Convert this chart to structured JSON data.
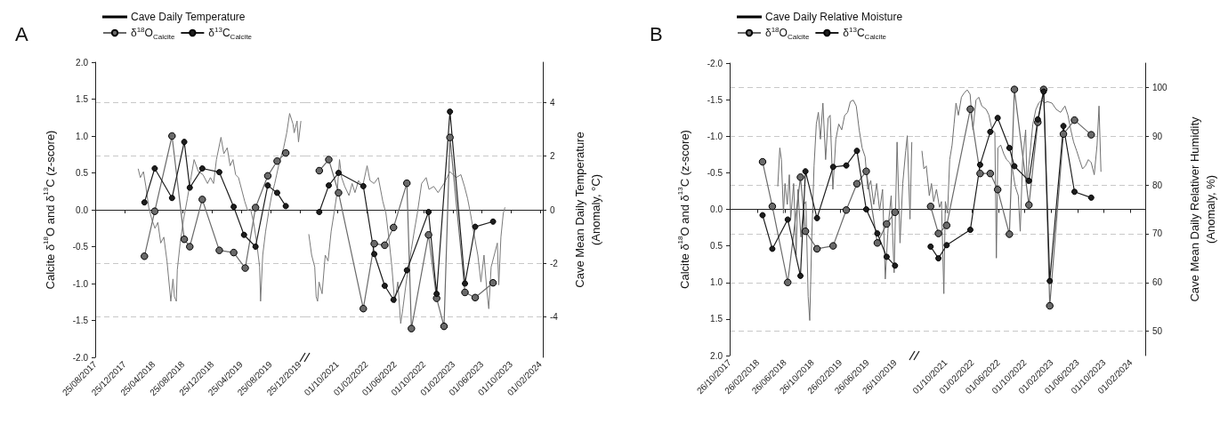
{
  "chart_data": [
    {
      "type": "line",
      "title": "A",
      "ylabel": "Calcite δ$^{18}$O and δ$^{13}$C (z-score)",
      "legend": "top left",
      "grid": "y2",
      "xlim": [
        "2017-08-25",
        "2020-01-17"
      ],
      "xticks": [
        {
          "value": "2017-08-25",
          "label": "25/08/2017"
        },
        {
          "value": "2017-12-25",
          "label": "25/12/2017"
        },
        {
          "value": "2018-04-25",
          "label": "25/04/2018"
        },
        {
          "value": "2018-08-25",
          "label": "25/08/2018"
        },
        {
          "value": "2018-12-25",
          "label": "25/12/2018"
        },
        {
          "value": "2019-04-25",
          "label": "25/04/2019"
        },
        {
          "value": "2019-08-25",
          "label": "25/08/2019"
        },
        {
          "value": "2019-12-25",
          "label": "25/12/2019"
        }
      ],
      "ylim": [
        -2,
        2
      ],
      "yticks": [
        {
          "value": -2,
          "label": "-2.0"
        },
        {
          "value": -1.5,
          "label": "-1.5"
        },
        {
          "value": -1,
          "label": "-1.0"
        },
        {
          "value": -0.5,
          "label": "-0.5"
        },
        {
          "value": 0,
          "label": "0.0"
        },
        {
          "value": 0.5,
          "label": "0.5"
        },
        {
          "value": 1,
          "label": "1.0"
        },
        {
          "value": 1.5,
          "label": "1.5"
        },
        {
          "value": 2,
          "label": "2.0"
        }
      ],
      "y2lim": [
        -5.5,
        5.5
      ],
      "series": [
        {
          "name": "Cave Daily Temperature",
          "axis": "y2",
          "marker": "none",
          "color": "#7a7a7a",
          "x": [
            "2018-02-20",
            "2018-03-01",
            "2018-03-14",
            "2018-03-24",
            "2018-04-05",
            "2018-04-18",
            "2018-05-01",
            "2018-05-13",
            "2018-05-25",
            "2018-06-07",
            "2018-06-20",
            "2018-07-06",
            "2018-07-15",
            "2018-07-21",
            "2018-07-29",
            "2018-08-02",
            "2018-08-14",
            "2018-08-28",
            "2018-09-13",
            "2018-09-28",
            "2018-10-11",
            "2018-10-29",
            "2018-11-17",
            "2018-12-06",
            "2018-12-18",
            "2018-12-31",
            "2019-01-12",
            "2019-01-31",
            "2019-02-12",
            "2019-02-26",
            "2019-03-10",
            "2019-03-22",
            "2019-04-02",
            "2019-04-14",
            "2019-04-27",
            "2019-05-10",
            "2019-05-22",
            "2019-06-03",
            "2019-06-16",
            "2019-06-29",
            "2019-07-11",
            "2019-07-15",
            "2019-07-24",
            "2019-08-05",
            "2019-08-17",
            "2019-08-30",
            "2019-09-12",
            "2019-10-01",
            "2019-10-19",
            "2019-11-01",
            "2019-11-13",
            "2019-11-27",
            "2019-12-02",
            "2019-12-14",
            "2019-12-20",
            "2019-12-30"
          ],
          "values": [
            1.53,
            1.2,
            1.42,
            0.87,
            0.09,
            -0.36,
            -0.69,
            -0.47,
            -1.24,
            -1.02,
            -1.91,
            -3.41,
            -2.58,
            -3.24,
            -3.41,
            -2.24,
            -1.24,
            -0.36,
            0.42,
            1.2,
            1.87,
            1.42,
            1.31,
            0.98,
            1.2,
            0.98,
            1.87,
            2.7,
            2.09,
            2.31,
            1.64,
            1.87,
            1.31,
            1.2,
            0.76,
            0.31,
            -0.02,
            0.03,
            -0.47,
            -1.24,
            -2.13,
            -3.41,
            -1.69,
            -0.8,
            -0.13,
            0.53,
            0.98,
            1.76,
            2.31,
            2.87,
            3.59,
            3.2,
            2.87,
            3.31,
            2.53,
            3.31
          ]
        },
        {
          "name": "δ$^{18}$O$_{Calcite}$",
          "marker": "circle",
          "color": "#6a6a6a",
          "x": [
            "2018-03-18",
            "2018-04-30",
            "2018-07-11",
            "2018-08-31",
            "2018-09-23",
            "2018-11-14",
            "2019-01-24",
            "2019-03-25",
            "2019-05-12",
            "2019-06-24",
            "2019-08-14",
            "2019-09-22",
            "2019-10-28"
          ],
          "values": [
            -0.63,
            -0.02,
            1.0,
            -0.4,
            -0.5,
            0.14,
            -0.55,
            -0.58,
            -0.79,
            0.03,
            0.46,
            0.66,
            0.77
          ]
        },
        {
          "name": "δ$^{13}$C$_{Calcite}$",
          "marker": "circle",
          "color": "#1e1e1e",
          "x": [
            "2018-03-18",
            "2018-04-30",
            "2018-07-11",
            "2018-08-31",
            "2018-09-23",
            "2018-11-14",
            "2019-01-24",
            "2019-03-25",
            "2019-05-07",
            "2019-06-24",
            "2019-08-14",
            "2019-09-22",
            "2019-10-28"
          ],
          "values": [
            0.1,
            0.56,
            0.16,
            0.92,
            0.3,
            0.56,
            0.51,
            0.04,
            -0.34,
            -0.5,
            0.33,
            0.23,
            0.05
          ]
        }
      ]
    },
    {
      "type": "line",
      "y2label": "Cave Mean Daily Temperature\n(Anomaly, °C)",
      "grid": "y2",
      "xlim": [
        "2021-05-20",
        "2024-02-12"
      ],
      "xticks": [
        {
          "value": "2021-10-01",
          "label": "01/10/2021"
        },
        {
          "value": "2022-02-01",
          "label": "01/02/2022"
        },
        {
          "value": "2022-06-01",
          "label": "01/06/2022"
        },
        {
          "value": "2022-10-01",
          "label": "01/10/2022"
        },
        {
          "value": "2023-02-01",
          "label": "01/02/2023"
        },
        {
          "value": "2023-06-01",
          "label": "01/06/2023"
        },
        {
          "value": "2023-10-01",
          "label": "01/10/2023"
        },
        {
          "value": "2024-02-01",
          "label": "01/02/2024"
        }
      ],
      "ylim": [
        -2,
        2
      ],
      "y2lim": [
        -5.5,
        5.5
      ],
      "y2ticks": [
        -4,
        -2,
        0,
        2,
        4
      ],
      "series": [
        {
          "axis": "y2",
          "marker": "none",
          "color": "#7a7a7a",
          "x": [
            "2021-06-04",
            "2021-06-16",
            "2021-06-29",
            "2021-07-05",
            "2021-07-11",
            "2021-07-17",
            "2021-07-30",
            "2021-08-12",
            "2021-08-24",
            "2021-09-06",
            "2021-09-18",
            "2021-10-01",
            "2021-10-11",
            "2021-10-20",
            "2021-11-02",
            "2021-11-20",
            "2021-12-03",
            "2021-12-15",
            "2021-12-30",
            "2022-01-16",
            "2022-02-04",
            "2022-02-16",
            "2022-03-05",
            "2022-03-23",
            "2022-04-11",
            "2022-04-24",
            "2022-05-06",
            "2022-05-19",
            "2022-05-31",
            "2022-06-13",
            "2022-06-25",
            "2022-07-04",
            "2022-07-20",
            "2022-08-09",
            "2022-08-21",
            "2022-09-03",
            "2022-09-21",
            "2022-10-10",
            "2022-10-22",
            "2022-11-11",
            "2022-11-29",
            "2022-12-24",
            "2023-01-18",
            "2023-02-13",
            "2023-03-05",
            "2023-03-20",
            "2023-04-02",
            "2023-04-14",
            "2023-04-27",
            "2023-05-15",
            "2023-05-28",
            "2023-06-10",
            "2023-06-22",
            "2023-06-30",
            "2023-07-10",
            "2023-07-23",
            "2023-08-05",
            "2023-08-11",
            "2023-08-20",
            "2023-08-30",
            "2023-09-06"
          ],
          "values": [
            -0.91,
            -1.69,
            -2.13,
            -3.24,
            -3.41,
            -2.69,
            -3.13,
            -1.69,
            -1.91,
            -0.8,
            -0.13,
            0.64,
            1.87,
            1.2,
            0.87,
            0.53,
            0.98,
            0.64,
            1.09,
            0.87,
            1.64,
            1.09,
            0.98,
            1.2,
            0.31,
            -0.13,
            -1.02,
            -2.13,
            -3.47,
            -2.69,
            -4.24,
            -3.69,
            -2.58,
            -1.47,
            -0.8,
            -0.13,
            0.98,
            1.2,
            0.76,
            0.87,
            0.64,
            0.98,
            1.42,
            1.2,
            1.31,
            0.87,
            0.42,
            -0.13,
            -0.8,
            -1.69,
            -2.69,
            -1.69,
            -3.02,
            -3.69,
            -2.13,
            -1.69,
            -1.24,
            -2.8,
            -1.02,
            -0.13,
            0.09
          ]
        },
        {
          "marker": "circle",
          "color": "#6a6a6a",
          "x": [
            "2021-07-18",
            "2021-08-27",
            "2021-10-07",
            "2022-01-19",
            "2022-03-06",
            "2022-04-19",
            "2022-05-26",
            "2022-07-21",
            "2022-08-09",
            "2022-10-20",
            "2022-11-23",
            "2022-12-24",
            "2023-01-18",
            "2023-03-22",
            "2023-05-04",
            "2023-07-18"
          ],
          "values": [
            0.53,
            0.68,
            0.23,
            -1.34,
            -0.46,
            -0.48,
            -0.24,
            0.36,
            -1.61,
            -0.34,
            -1.2,
            -1.58,
            0.98,
            -1.12,
            -1.19,
            -0.99
          ]
        },
        {
          "marker": "circle",
          "color": "#1e1e1e",
          "x": [
            "2021-07-18",
            "2021-08-27",
            "2021-10-07",
            "2022-01-19",
            "2022-03-06",
            "2022-04-19",
            "2022-05-26",
            "2022-07-21",
            "2022-10-20",
            "2022-11-23",
            "2023-01-18",
            "2023-03-22",
            "2023-05-04",
            "2023-07-18"
          ],
          "values": [
            -0.03,
            0.33,
            0.5,
            0.32,
            -0.6,
            -1.03,
            -1.22,
            -0.82,
            -0.03,
            -1.14,
            1.33,
            -1.0,
            -0.23,
            -0.16
          ]
        }
      ]
    },
    {
      "type": "line",
      "title": "B",
      "ylabel": "Calcite δ$^{18}$O and δ$^{13}$C (z-score)",
      "legend": "top left",
      "grid": "y2",
      "xlim": [
        "2017-10-26",
        "2020-01-20"
      ],
      "xticks": [
        {
          "value": "2017-10-26",
          "label": "26/10/2017"
        },
        {
          "value": "2018-02-26",
          "label": "26/02/2018"
        },
        {
          "value": "2018-06-26",
          "label": "26/06/2018"
        },
        {
          "value": "2018-10-26",
          "label": "26/10/2018"
        },
        {
          "value": "2019-02-26",
          "label": "26/02/2019"
        },
        {
          "value": "2019-06-26",
          "label": "26/06/2019"
        },
        {
          "value": "2019-10-26",
          "label": "26/10/2019"
        }
      ],
      "ylim": [
        2,
        -2
      ],
      "yticks": [
        {
          "value": -2,
          "label": "-2.0"
        },
        {
          "value": -1.5,
          "label": "-1.5"
        },
        {
          "value": -1,
          "label": "-1.0"
        },
        {
          "value": -0.5,
          "label": "-0.5"
        },
        {
          "value": 0,
          "label": "0.0"
        },
        {
          "value": 0.5,
          "label": "0.5"
        },
        {
          "value": 1,
          "label": "1.0"
        },
        {
          "value": 1.5,
          "label": "1.5"
        },
        {
          "value": 2,
          "label": "2.0"
        }
      ],
      "y2lim": [
        45,
        105
      ],
      "series": [
        {
          "name": "Cave Daily Relative Moisture",
          "axis": "y2",
          "marker": "none",
          "color": "#6f6f6f",
          "x": [
            "2018-05-26",
            "2018-06-04",
            "2018-06-11",
            "2018-06-20",
            "2018-06-27",
            "2018-07-07",
            "2018-07-16",
            "2018-07-22",
            "2018-08-04",
            "2018-08-15",
            "2018-08-23",
            "2018-09-05",
            "2018-09-18",
            "2018-09-27",
            "2018-10-07",
            "2018-10-14",
            "2018-10-23",
            "2018-11-02",
            "2018-11-12",
            "2018-11-21",
            "2018-11-30",
            "2018-12-11",
            "2018-12-23",
            "2019-01-03",
            "2019-01-12",
            "2019-01-24",
            "2019-02-06",
            "2019-02-19",
            "2019-03-04",
            "2019-03-17",
            "2019-03-30",
            "2019-04-11",
            "2019-04-24",
            "2019-05-07",
            "2019-05-20",
            "2019-06-02",
            "2019-06-15",
            "2019-06-27",
            "2019-07-10",
            "2019-07-23",
            "2019-08-05",
            "2019-08-18",
            "2019-08-31",
            "2019-09-12",
            "2019-09-25",
            "2019-10-08",
            "2019-10-21",
            "2019-11-03",
            "2019-11-16",
            "2019-11-28",
            "2019-12-11",
            "2019-12-18",
            "2019-12-30",
            "2020-01-07"
          ],
          "values": [
            79.7,
            87.6,
            85.2,
            74.2,
            80.3,
            76.0,
            82.1,
            73.0,
            80.3,
            65.6,
            79.1,
            69.3,
            76.0,
            76.6,
            57.1,
            52.2,
            69.3,
            83.9,
            92.5,
            94.9,
            89.4,
            96.8,
            85.2,
            93.7,
            94.3,
            79.1,
            89.4,
            92.5,
            91.3,
            94.3,
            94.9,
            97.1,
            97.4,
            96.2,
            91.3,
            87.6,
            85.8,
            79.1,
            80.9,
            76.0,
            80.3,
            74.8,
            79.1,
            60.7,
            71.7,
            77.8,
            62.0,
            88.8,
            68.1,
            80.3,
            87.0,
            90.1,
            73.0,
            88.8
          ]
        },
        {
          "name": "δ$^{18}$O$_{Calcite}$",
          "marker": "circle",
          "color": "#6a6a6a",
          "x": [
            "2018-03-20",
            "2018-05-02",
            "2018-07-09",
            "2018-09-03",
            "2018-09-25",
            "2018-11-15",
            "2019-01-25",
            "2019-03-24",
            "2019-05-10",
            "2019-06-20",
            "2019-08-08",
            "2019-09-18",
            "2019-10-25"
          ],
          "values": [
            -0.65,
            -0.04,
            1.0,
            -0.44,
            0.3,
            0.54,
            0.5,
            0.01,
            -0.35,
            -0.52,
            0.46,
            0.2,
            0.04
          ]
        },
        {
          "name": "δ$^{13}$C$_{Calcite}$",
          "marker": "circle",
          "color": "#1e1e1e",
          "x": [
            "2018-03-20",
            "2018-05-02",
            "2018-07-09",
            "2018-09-03",
            "2018-09-25",
            "2018-11-15",
            "2019-01-25",
            "2019-03-24",
            "2019-05-10",
            "2019-06-20",
            "2019-08-08",
            "2019-09-18",
            "2019-10-25"
          ],
          "values": [
            0.08,
            0.54,
            0.14,
            0.91,
            -0.52,
            0.12,
            -0.58,
            -0.6,
            -0.8,
            0.0,
            0.33,
            0.65,
            0.77
          ]
        }
      ]
    },
    {
      "type": "line",
      "y2label": "Cave Mean Daily Relativer Humidity\n(Anomaly, %)",
      "grid": "y2",
      "xlim": [
        "2021-05-12",
        "2024-04-08"
      ],
      "xticks": [
        {
          "value": "2021-10-01",
          "label": "01/10/2021"
        },
        {
          "value": "2022-02-01",
          "label": "01/02/2022"
        },
        {
          "value": "2022-06-01",
          "label": "01/06/2022"
        },
        {
          "value": "2022-10-01",
          "label": "01/10/2022"
        },
        {
          "value": "2023-02-01",
          "label": "01/02/2023"
        },
        {
          "value": "2023-06-01",
          "label": "01/06/2023"
        },
        {
          "value": "2023-10-01",
          "label": "01/10/2023"
        },
        {
          "value": "2024-02-01",
          "label": "01/02/2024"
        }
      ],
      "ylim": [
        2,
        -2
      ],
      "y2lim": [
        45,
        105
      ],
      "y2ticks": [
        50,
        60,
        70,
        80,
        90,
        100
      ],
      "series": [
        {
          "axis": "y2",
          "marker": "none",
          "color": "#6f6f6f",
          "x": [
            "2021-06-14",
            "2021-06-23",
            "2021-07-04",
            "2021-07-18",
            "2021-07-28",
            "2021-08-07",
            "2021-08-20",
            "2021-09-03",
            "2021-09-12",
            "2021-09-23",
            "2021-09-30",
            "2021-10-10",
            "2021-10-20",
            "2021-10-31",
            "2021-11-09",
            "2021-11-18",
            "2021-11-29",
            "2021-12-13",
            "2021-12-26",
            "2022-01-09",
            "2022-01-22",
            "2022-02-04",
            "2022-02-18",
            "2022-03-03",
            "2022-03-17",
            "2022-04-06",
            "2022-04-19",
            "2022-05-03",
            "2022-05-16",
            "2022-05-23",
            "2022-05-30",
            "2022-06-12",
            "2022-06-26",
            "2022-07-09",
            "2022-07-23",
            "2022-08-05",
            "2022-08-18",
            "2022-09-01",
            "2022-09-10",
            "2022-09-21",
            "2022-10-05",
            "2022-10-11",
            "2022-10-25",
            "2022-11-07",
            "2022-11-21",
            "2022-12-04",
            "2022-12-18",
            "2022-12-31",
            "2023-01-13",
            "2023-02-03",
            "2023-02-23",
            "2023-03-15",
            "2023-04-04",
            "2023-04-18",
            "2023-05-01",
            "2023-05-14",
            "2023-05-28",
            "2023-06-10",
            "2023-06-24",
            "2023-07-07",
            "2023-07-21",
            "2023-08-03",
            "2023-08-17",
            "2023-08-30",
            "2023-09-08",
            "2023-09-17"
          ],
          "values": [
            87.0,
            83.3,
            83.9,
            77.8,
            80.3,
            76.6,
            79.1,
            75.4,
            76.6,
            57.7,
            76.6,
            74.2,
            85.2,
            88.2,
            92.5,
            96.8,
            94.3,
            98.0,
            98.9,
            99.5,
            98.6,
            91.3,
            97.4,
            98.0,
            96.2,
            95.5,
            94.3,
            91.3,
            90.7,
            65.0,
            87.6,
            88.2,
            86.4,
            85.2,
            84.6,
            83.3,
            79.7,
            77.8,
            70.5,
            85.2,
            91.3,
            80.3,
            86.4,
            92.5,
            95.5,
            96.8,
            97.4,
            96.8,
            97.1,
            96.8,
            95.5,
            94.9,
            96.2,
            94.3,
            91.3,
            88.8,
            87.0,
            85.2,
            83.3,
            83.9,
            85.2,
            84.6,
            82.1,
            88.2,
            96.2,
            82.7
          ]
        },
        {
          "marker": "circle",
          "color": "#6a6a6a",
          "x": [
            "2021-07-24",
            "2021-08-29",
            "2021-10-06",
            "2022-01-23",
            "2022-03-09",
            "2022-04-25",
            "2022-05-29",
            "2022-07-22",
            "2022-08-14",
            "2022-10-20",
            "2022-11-30",
            "2022-12-27",
            "2023-01-24",
            "2023-03-28",
            "2023-05-18",
            "2023-08-03"
          ],
          "values": [
            -0.04,
            0.33,
            0.22,
            -1.37,
            -0.49,
            -0.49,
            -0.27,
            0.34,
            -1.64,
            -0.06,
            -1.19,
            -1.64,
            1.32,
            -1.03,
            -1.22,
            -1.02
          ]
        },
        {
          "marker": "circle",
          "color": "#1e1e1e",
          "x": [
            "2021-07-24",
            "2021-08-29",
            "2021-10-06",
            "2022-01-23",
            "2022-03-09",
            "2022-04-25",
            "2022-05-29",
            "2022-07-22",
            "2022-08-14",
            "2022-10-20",
            "2022-11-30",
            "2022-12-27",
            "2023-01-24",
            "2023-03-28",
            "2023-05-18",
            "2023-08-03"
          ],
          "values": [
            0.51,
            0.67,
            0.49,
            0.28,
            -0.61,
            -1.06,
            -1.25,
            -0.84,
            -0.59,
            -0.39,
            -1.23,
            -1.61,
            0.98,
            -1.14,
            -0.24,
            -0.16
          ]
        }
      ]
    }
  ]
}
